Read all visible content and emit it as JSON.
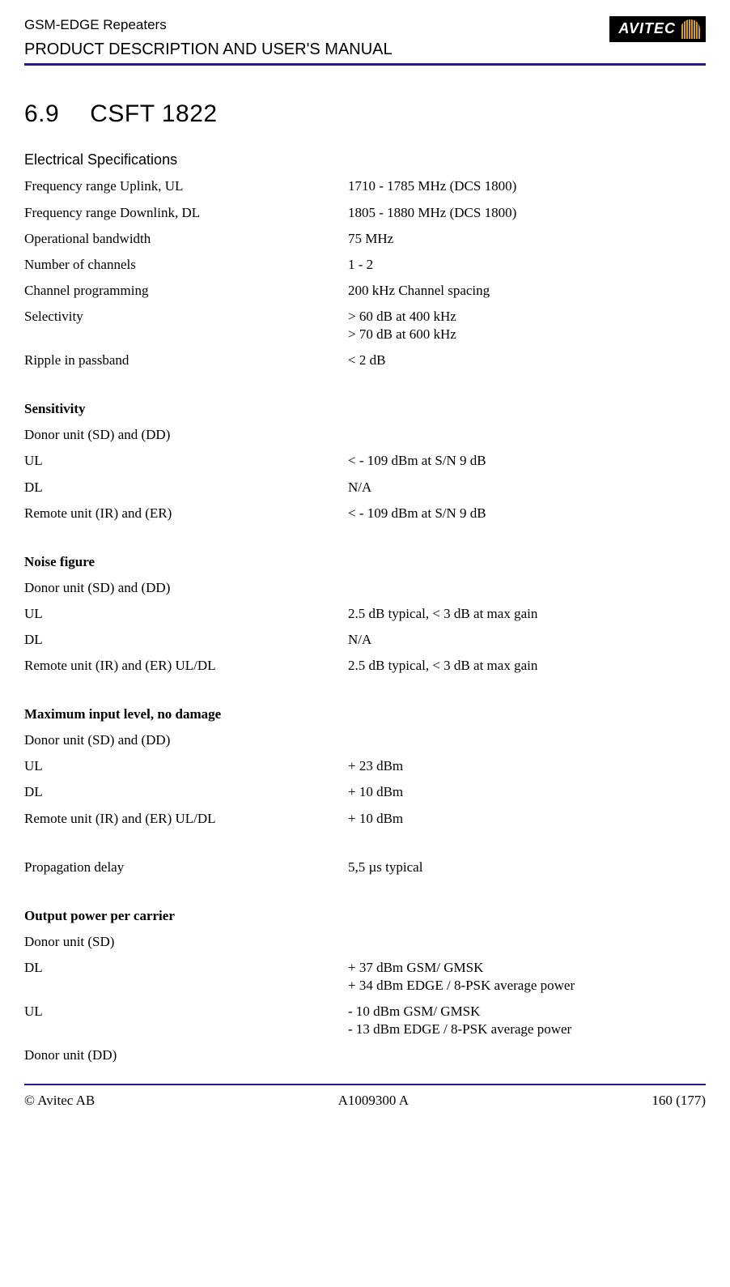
{
  "header": {
    "line1": "GSM-EDGE Repeaters",
    "line2": "PRODUCT DESCRIPTION AND USER'S MANUAL",
    "logo_text": "AVITEC"
  },
  "section": {
    "number": "6.9",
    "title": "CSFT 1822"
  },
  "electrical": {
    "heading": "Electrical Specifications",
    "rows": [
      {
        "label": "Frequency range Uplink, UL",
        "value": "1710 - 1785 MHz (DCS 1800)"
      },
      {
        "label": "Frequency range Downlink, DL",
        "value": "1805 - 1880 MHz (DCS 1800)"
      },
      {
        "label": "Operational bandwidth",
        "value": "75 MHz"
      },
      {
        "label": "Number of channels",
        "value": "1 - 2"
      },
      {
        "label": "Channel programming",
        "value": "200 kHz Channel spacing"
      },
      {
        "label": "Selectivity",
        "value": "> 60 dB at 400 kHz\n> 70 dB at 600 kHz"
      },
      {
        "label": "Ripple in passband",
        "value": "< 2 dB"
      }
    ]
  },
  "sensitivity": {
    "heading": "Sensitivity",
    "rows": [
      {
        "label": "Donor unit (SD) and (DD)",
        "value": ""
      },
      {
        "label": "UL",
        "value": "< - 109 dBm at S/N 9 dB"
      },
      {
        "label": "DL",
        "value": "N/A"
      },
      {
        "label": "Remote unit (IR) and (ER)",
        "value": "< - 109 dBm at S/N 9 dB"
      }
    ]
  },
  "noise": {
    "heading": "Noise figure",
    "rows": [
      {
        "label": "Donor unit (SD) and (DD)",
        "value": ""
      },
      {
        "label": "UL",
        "value": "2.5 dB typical, < 3 dB at max gain"
      },
      {
        "label": "DL",
        "value": "N/A"
      },
      {
        "label": "Remote unit (IR) and (ER) UL/DL",
        "value": "2.5 dB typical, < 3 dB at max gain"
      }
    ]
  },
  "maxinput": {
    "heading": "Maximum input level, no damage",
    "rows": [
      {
        "label": "Donor unit (SD) and (DD)",
        "value": ""
      },
      {
        "label": "UL",
        "value": "+ 23 dBm"
      },
      {
        "label": "DL",
        "value": "+ 10 dBm"
      },
      {
        "label": "Remote unit (IR) and (ER) UL/DL",
        "value": "+ 10 dBm"
      }
    ]
  },
  "propagation": {
    "label": "Propagation delay",
    "value": "5,5 µs typical"
  },
  "output": {
    "heading": "Output power per carrier",
    "rows": [
      {
        "label": "Donor unit (SD)",
        "value": ""
      },
      {
        "label": "DL",
        "value": "+ 37 dBm GSM/ GMSK\n+ 34 dBm EDGE / 8-PSK average power"
      },
      {
        "label": "UL",
        "value": "- 10 dBm GSM/ GMSK\n- 13 dBm EDGE / 8-PSK average power"
      },
      {
        "label": "Donor unit (DD)",
        "value": ""
      }
    ]
  },
  "footer": {
    "left": "© Avitec AB",
    "center": "A1009300 A",
    "right": "160 (177)"
  }
}
